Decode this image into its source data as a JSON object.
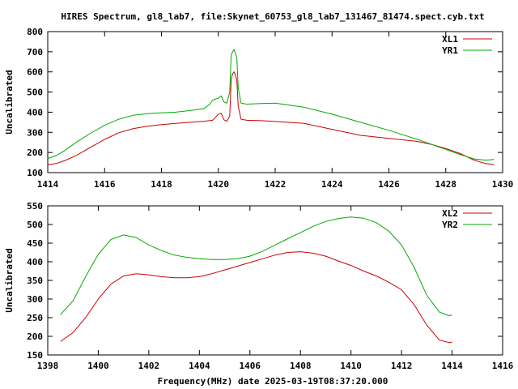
{
  "title": "HIRES Spectrum, gl8_lab7, file:Skynet_60753_gl8_lab7_131467_81474.spect.cyb.txt",
  "xlabel": "Frequency(MHz) date 2025-03-19T08:37:20.000",
  "colors": {
    "red": "#cc0000",
    "green": "#00aa00",
    "frame": "#000000"
  },
  "chart_data": [
    {
      "type": "line",
      "ylabel": "Uncalibrated",
      "xlim": [
        1414,
        1430
      ],
      "ylim": [
        100,
        800
      ],
      "xticks": [
        1414,
        1416,
        1418,
        1420,
        1422,
        1424,
        1426,
        1428,
        1430
      ],
      "yticks": [
        100,
        200,
        300,
        400,
        500,
        600,
        700,
        800
      ],
      "legend_position": "top-right",
      "series": [
        {
          "name": "XL1",
          "color": "#cc0000",
          "points": [
            [
              1414.0,
              140
            ],
            [
              1414.3,
              145
            ],
            [
              1414.6,
              160
            ],
            [
              1415.0,
              185
            ],
            [
              1415.5,
              225
            ],
            [
              1416.0,
              265
            ],
            [
              1416.5,
              298
            ],
            [
              1417.0,
              318
            ],
            [
              1417.5,
              330
            ],
            [
              1418.0,
              338
            ],
            [
              1418.5,
              344
            ],
            [
              1419.0,
              350
            ],
            [
              1419.5,
              355
            ],
            [
              1419.8,
              360
            ],
            [
              1420.0,
              390
            ],
            [
              1420.1,
              395
            ],
            [
              1420.2,
              362
            ],
            [
              1420.3,
              355
            ],
            [
              1420.4,
              380
            ],
            [
              1420.45,
              560
            ],
            [
              1420.5,
              590
            ],
            [
              1420.55,
              600
            ],
            [
              1420.6,
              585
            ],
            [
              1420.65,
              560
            ],
            [
              1420.7,
              430
            ],
            [
              1420.8,
              365
            ],
            [
              1421.0,
              360
            ],
            [
              1421.5,
              358
            ],
            [
              1422.0,
              354
            ],
            [
              1423.0,
              345
            ],
            [
              1424.0,
              315
            ],
            [
              1425.0,
              285
            ],
            [
              1426.0,
              270
            ],
            [
              1427.0,
              255
            ],
            [
              1427.5,
              240
            ],
            [
              1428.0,
              220
            ],
            [
              1428.5,
              195
            ],
            [
              1429.0,
              162
            ],
            [
              1429.4,
              145
            ],
            [
              1429.7,
              140
            ]
          ]
        },
        {
          "name": "YR1",
          "color": "#00aa00",
          "points": [
            [
              1414.0,
              170
            ],
            [
              1414.3,
              185
            ],
            [
              1414.6,
              210
            ],
            [
              1415.0,
              250
            ],
            [
              1415.5,
              295
            ],
            [
              1416.0,
              335
            ],
            [
              1416.5,
              365
            ],
            [
              1417.0,
              385
            ],
            [
              1417.5,
              393
            ],
            [
              1418.0,
              397
            ],
            [
              1418.5,
              400
            ],
            [
              1419.0,
              408
            ],
            [
              1419.5,
              418
            ],
            [
              1419.7,
              440
            ],
            [
              1419.8,
              460
            ],
            [
              1420.0,
              470
            ],
            [
              1420.1,
              480
            ],
            [
              1420.2,
              450
            ],
            [
              1420.3,
              445
            ],
            [
              1420.4,
              500
            ],
            [
              1420.45,
              680
            ],
            [
              1420.5,
              700
            ],
            [
              1420.55,
              710
            ],
            [
              1420.6,
              695
            ],
            [
              1420.65,
              670
            ],
            [
              1420.7,
              520
            ],
            [
              1420.8,
              445
            ],
            [
              1421.0,
              440
            ],
            [
              1421.5,
              443
            ],
            [
              1422.0,
              445
            ],
            [
              1423.0,
              425
            ],
            [
              1424.0,
              390
            ],
            [
              1425.0,
              350
            ],
            [
              1426.0,
              310
            ],
            [
              1427.0,
              265
            ],
            [
              1427.5,
              240
            ],
            [
              1428.0,
              215
            ],
            [
              1428.5,
              190
            ],
            [
              1429.0,
              168
            ],
            [
              1429.4,
              162
            ],
            [
              1429.7,
              165
            ]
          ]
        }
      ]
    },
    {
      "type": "line",
      "ylabel": "Uncalibrated",
      "xlim": [
        1398,
        1416
      ],
      "ylim": [
        150,
        550
      ],
      "xticks": [
        1398,
        1400,
        1402,
        1404,
        1406,
        1408,
        1410,
        1412,
        1414,
        1416
      ],
      "yticks": [
        150,
        200,
        250,
        300,
        350,
        400,
        450,
        500,
        550
      ],
      "legend_position": "top-right",
      "series": [
        {
          "name": "XL2",
          "color": "#cc0000",
          "points": [
            [
              1398.5,
              186
            ],
            [
              1399.0,
              210
            ],
            [
              1399.5,
              250
            ],
            [
              1400.0,
              300
            ],
            [
              1400.5,
              340
            ],
            [
              1401.0,
              362
            ],
            [
              1401.5,
              368
            ],
            [
              1402.0,
              365
            ],
            [
              1402.5,
              360
            ],
            [
              1403.0,
              357
            ],
            [
              1403.5,
              357
            ],
            [
              1404.0,
              360
            ],
            [
              1404.5,
              368
            ],
            [
              1405.0,
              378
            ],
            [
              1405.5,
              388
            ],
            [
              1406.0,
              398
            ],
            [
              1406.5,
              408
            ],
            [
              1407.0,
              418
            ],
            [
              1407.5,
              425
            ],
            [
              1408.0,
              427
            ],
            [
              1408.5,
              423
            ],
            [
              1409.0,
              415
            ],
            [
              1409.5,
              402
            ],
            [
              1410.0,
              390
            ],
            [
              1410.5,
              375
            ],
            [
              1411.0,
              362
            ],
            [
              1411.5,
              345
            ],
            [
              1412.0,
              325
            ],
            [
              1412.5,
              285
            ],
            [
              1413.0,
              230
            ],
            [
              1413.5,
              190
            ],
            [
              1413.9,
              183
            ],
            [
              1414.0,
              185
            ]
          ]
        },
        {
          "name": "YR2",
          "color": "#00aa00",
          "points": [
            [
              1398.5,
              258
            ],
            [
              1399.0,
              295
            ],
            [
              1399.5,
              360
            ],
            [
              1400.0,
              420
            ],
            [
              1400.5,
              460
            ],
            [
              1401.0,
              472
            ],
            [
              1401.5,
              465
            ],
            [
              1402.0,
              445
            ],
            [
              1402.5,
              430
            ],
            [
              1403.0,
              418
            ],
            [
              1403.5,
              412
            ],
            [
              1404.0,
              408
            ],
            [
              1404.5,
              406
            ],
            [
              1405.0,
              406
            ],
            [
              1405.5,
              408
            ],
            [
              1406.0,
              415
            ],
            [
              1406.5,
              428
            ],
            [
              1407.0,
              445
            ],
            [
              1407.5,
              462
            ],
            [
              1408.0,
              478
            ],
            [
              1408.5,
              495
            ],
            [
              1409.0,
              508
            ],
            [
              1409.5,
              516
            ],
            [
              1410.0,
              520
            ],
            [
              1410.5,
              517
            ],
            [
              1411.0,
              505
            ],
            [
              1411.5,
              482
            ],
            [
              1412.0,
              445
            ],
            [
              1412.5,
              385
            ],
            [
              1413.0,
              310
            ],
            [
              1413.5,
              265
            ],
            [
              1413.9,
              255
            ],
            [
              1414.0,
              258
            ]
          ]
        }
      ]
    }
  ]
}
